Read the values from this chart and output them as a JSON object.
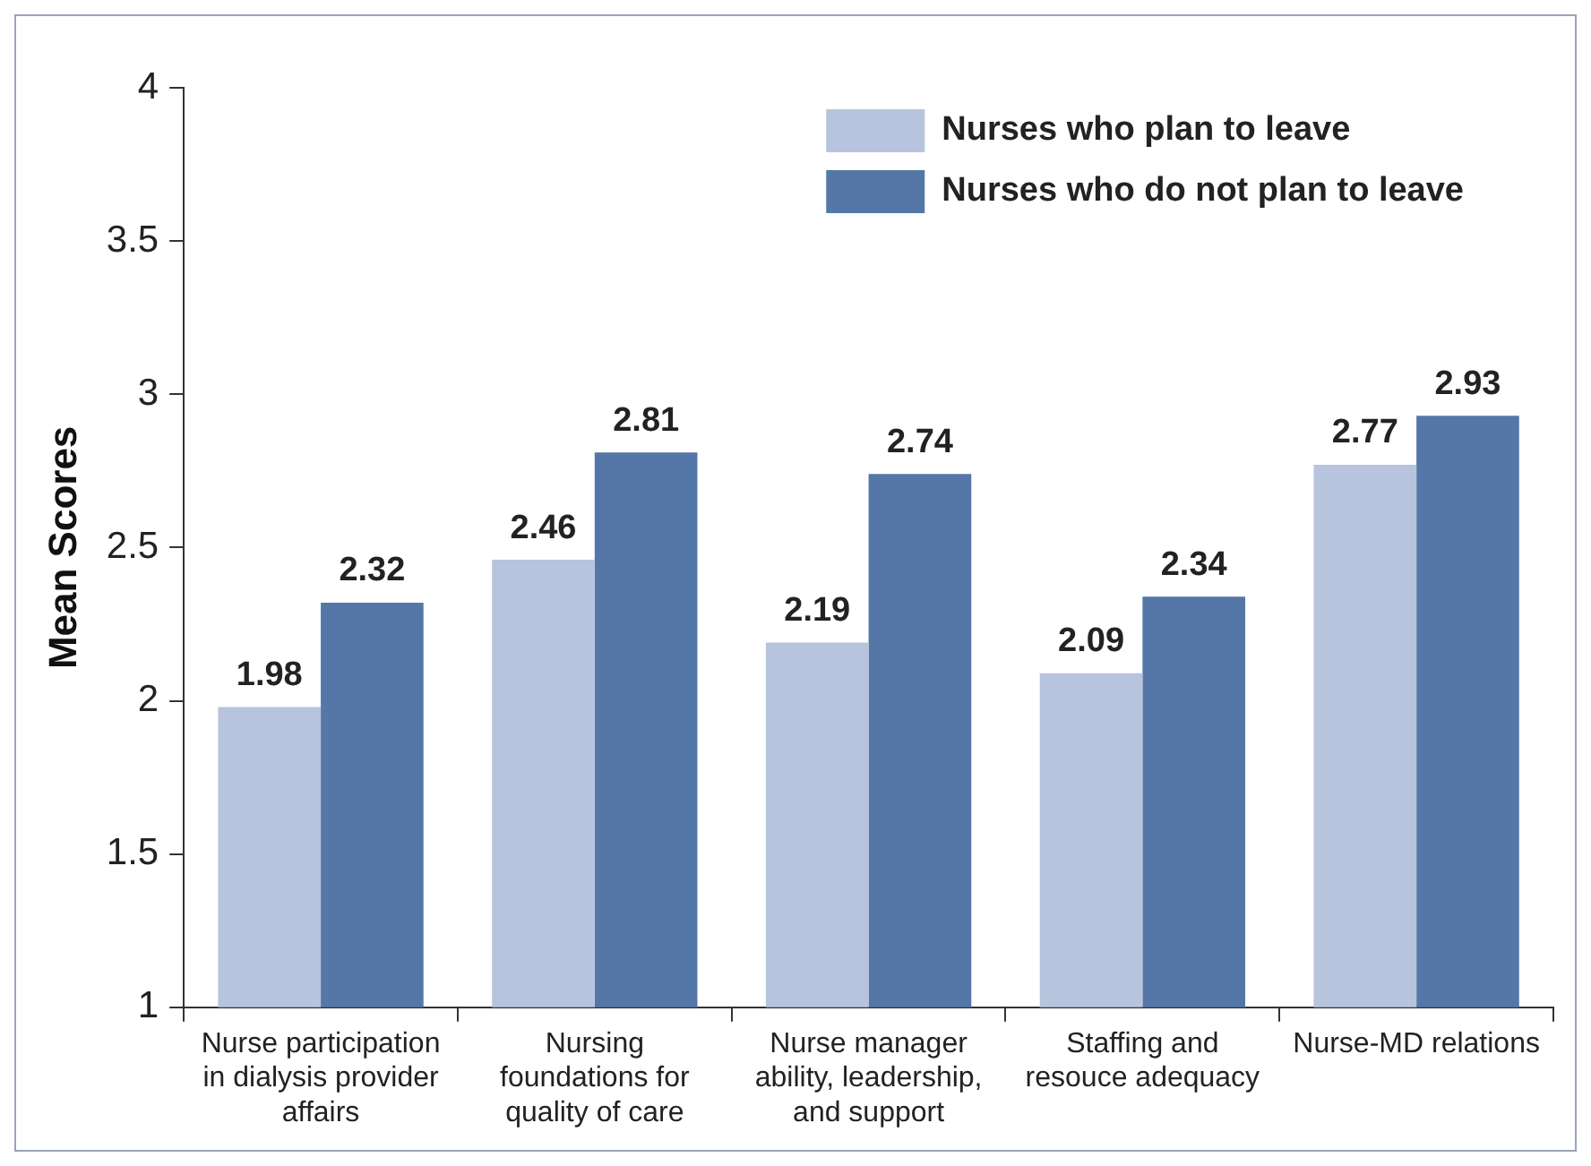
{
  "chart_data": {
    "type": "bar",
    "ylabel": "Mean Scores",
    "categories": [
      "Nurse participation in dialysis provider affairs",
      "Nursing foundations for quality of care",
      "Nurse manager ability, leadership, and support",
      "Staffing and resouce adequacy",
      "Nurse-MD relations"
    ],
    "series": [
      {
        "name": "Nurses who plan to leave",
        "color": "#b8c3dd",
        "values": [
          1.98,
          2.46,
          2.19,
          2.09,
          2.77
        ]
      },
      {
        "name": "Nurses who do not plan to leave",
        "color": "#5577a8",
        "values": [
          2.32,
          2.81,
          2.74,
          2.34,
          2.93
        ]
      }
    ],
    "ylim": [
      1,
      4
    ],
    "yticks": [
      1,
      1.5,
      2,
      2.5,
      3,
      3.5,
      4
    ],
    "grid": false,
    "legend": "top right",
    "data_labels": true
  }
}
